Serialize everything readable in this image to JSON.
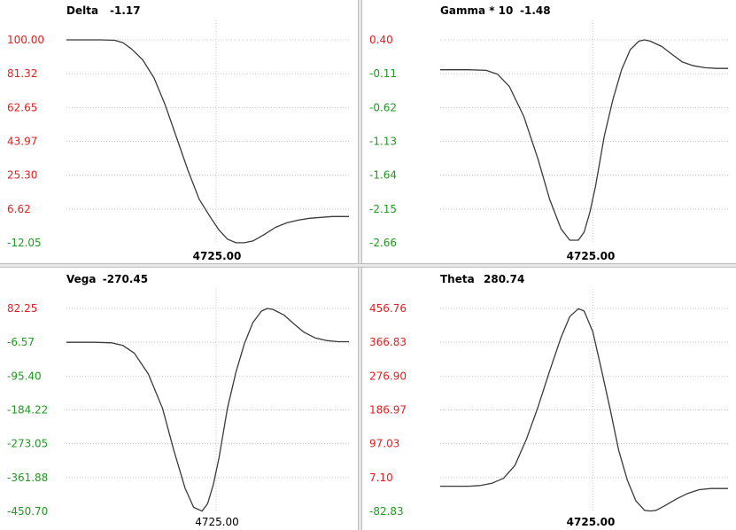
{
  "colors": {
    "positive_tick": "#e02020",
    "negative_tick": "#229922",
    "curve": "#3a3a3a",
    "grid": "#c8c8c8"
  },
  "chart_data": [
    {
      "type": "line",
      "title": "Delta",
      "title_value": "-1.17",
      "xlabel": "4725.00",
      "y_ticks": [
        "100.00",
        "81.32",
        "62.65",
        "43.97",
        "25.30",
        "6.62",
        "-12.05"
      ],
      "ylim": [
        -12.05,
        100.0
      ],
      "xlim": [
        0,
        100
      ],
      "x_marker": 53,
      "series": [
        {
          "x": [
            0,
            6,
            12,
            17,
            20,
            23,
            27,
            31,
            35,
            39,
            43,
            47,
            51,
            54,
            57,
            60,
            63,
            66,
            70,
            74,
            78,
            82,
            86,
            90,
            94,
            100
          ],
          "values": [
            100,
            100,
            100,
            99.8,
            98.5,
            95,
            89,
            79,
            64,
            46,
            28,
            12,
            2,
            -5,
            -10,
            -12,
            -12,
            -11,
            -7.5,
            -3.5,
            -1,
            0.5,
            1.5,
            2,
            2.5,
            2.5
          ]
        }
      ]
    },
    {
      "type": "line",
      "title": "Gamma * 10",
      "title_value": "-1.48",
      "xlabel": "4725.00",
      "y_ticks": [
        "0.40",
        "-0.11",
        "-0.62",
        "-1.13",
        "-1.64",
        "-2.15",
        "-2.66"
      ],
      "ylim": [
        -2.66,
        0.4
      ],
      "xlim": [
        0,
        100
      ],
      "x_marker": 53,
      "series": [
        {
          "x": [
            0,
            10,
            16,
            20,
            24,
            29,
            34,
            38,
            42,
            45,
            48,
            50,
            52,
            54,
            57,
            60,
            63,
            66,
            69,
            71,
            73,
            77,
            80,
            84,
            88,
            92,
            96,
            100
          ],
          "values": [
            -0.05,
            -0.05,
            -0.06,
            -0.12,
            -0.3,
            -0.75,
            -1.4,
            -2.0,
            -2.45,
            -2.62,
            -2.62,
            -2.5,
            -2.2,
            -1.8,
            -1.05,
            -0.5,
            -0.05,
            0.25,
            0.38,
            0.4,
            0.38,
            0.3,
            0.2,
            0.07,
            0.01,
            -0.02,
            -0.03,
            -0.03
          ]
        }
      ]
    },
    {
      "type": "line",
      "title": "Vega",
      "title_value": "-270.45",
      "xlabel": "4725.00",
      "y_ticks": [
        "82.25",
        "-6.57",
        "-95.40",
        "-184.22",
        "-273.05",
        "-361.88",
        "-450.70"
      ],
      "ylim": [
        -450.7,
        82.25
      ],
      "xlim": [
        0,
        100
      ],
      "x_marker": 53,
      "series": [
        {
          "x": [
            0,
            10,
            16,
            20,
            24,
            29,
            34,
            38,
            42,
            45,
            48,
            50,
            52,
            54,
            57,
            60,
            63,
            66,
            69,
            71,
            73,
            77,
            80,
            84,
            88,
            92,
            96,
            100
          ],
          "values": [
            -6.57,
            -6.57,
            -8,
            -15,
            -35,
            -90,
            -180,
            -290,
            -390,
            -440,
            -450,
            -430,
            -380,
            -310,
            -180,
            -85,
            -10,
            45,
            75,
            82,
            80,
            65,
            45,
            20,
            5,
            -2,
            -5,
            -5
          ]
        }
      ]
    },
    {
      "type": "line",
      "title": "Theta",
      "title_value": "280.74",
      "xlabel": "4725.00",
      "y_ticks": [
        "456.76",
        "366.83",
        "276.90",
        "186.97",
        "97.03",
        "7.10",
        "-82.83"
      ],
      "ylim": [
        -82.83,
        456.76
      ],
      "xlim": [
        0,
        100
      ],
      "x_marker": 53,
      "series": [
        {
          "x": [
            0,
            10,
            14,
            18,
            22,
            26,
            30,
            34,
            38,
            42,
            45,
            48,
            50,
            53,
            56,
            59,
            62,
            65,
            68,
            71,
            73,
            75,
            78,
            82,
            86,
            90,
            94,
            100
          ],
          "values": [
            -16,
            -16,
            -14,
            -8,
            5,
            40,
            110,
            195,
            290,
            380,
            435,
            456,
            450,
            395,
            295,
            190,
            80,
            0,
            -55,
            -80,
            -82,
            -80,
            -68,
            -50,
            -35,
            -25,
            -22,
            -22
          ]
        }
      ]
    }
  ]
}
